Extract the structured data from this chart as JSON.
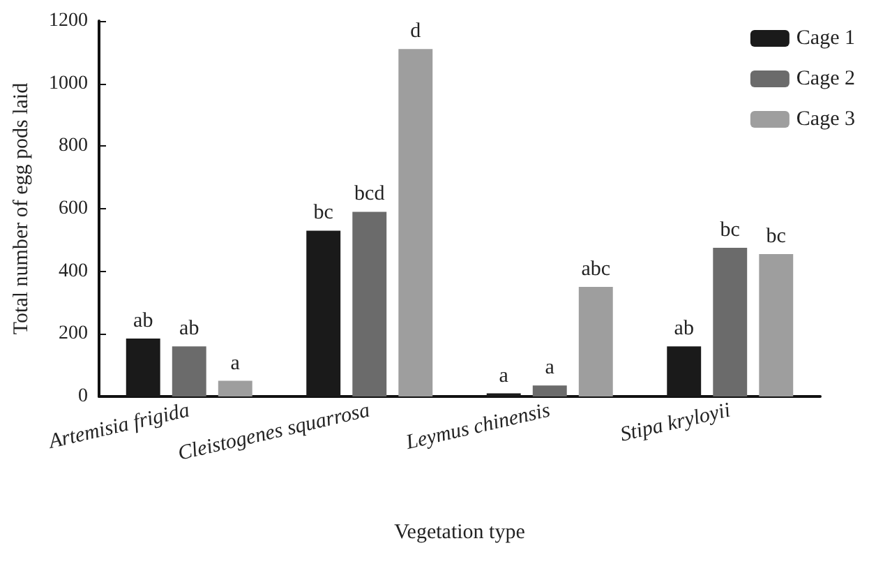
{
  "chart_data": {
    "type": "bar",
    "xlabel": "Vegetation type",
    "ylabel": "Total number of egg pods laid",
    "categories": [
      "Artemisia frigida",
      "Cleistogenes squarrosa",
      "Leymus chinensis",
      "Stipa kryloyii"
    ],
    "series": [
      {
        "name": "Cage 1",
        "color": "#1a1a1a",
        "values": [
          185,
          530,
          10,
          160
        ],
        "value_labels": [
          "ab",
          "bc",
          "a",
          "ab"
        ]
      },
      {
        "name": "Cage 2",
        "color": "#6b6b6b",
        "values": [
          160,
          590,
          35,
          475
        ],
        "value_labels": [
          "ab",
          "bcd",
          "a",
          "bc"
        ]
      },
      {
        "name": "Cage 3",
        "color": "#9e9e9e",
        "values": [
          50,
          1110,
          350,
          455
        ],
        "value_labels": [
          "a",
          "d",
          "abc",
          "bc"
        ]
      }
    ],
    "ylim": [
      0,
      1200
    ],
    "yticks": [
      0,
      200,
      400,
      600,
      800,
      1000,
      1200
    ],
    "grid": false,
    "legend": "top right"
  }
}
